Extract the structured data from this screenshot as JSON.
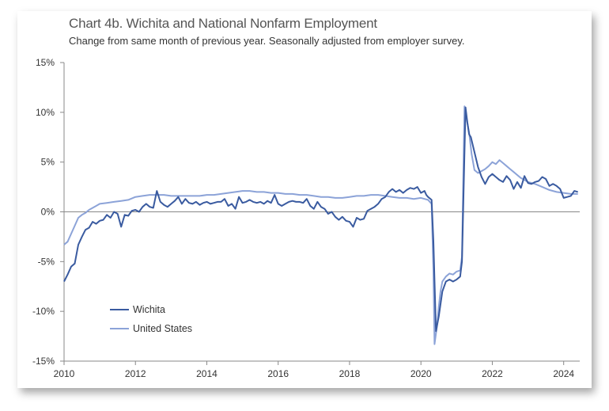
{
  "chart_data": {
    "type": "line",
    "title": "Chart 4b. Wichita and National Nonfarm Employment",
    "subtitle": "Change from same month of previous year. Seasonally adjusted from employer survey.",
    "xlabel": "",
    "ylabel": "",
    "xlim": [
      2010.0,
      2024.45
    ],
    "ylim": [
      -15,
      15
    ],
    "x_ticks": [
      2010,
      2012,
      2014,
      2016,
      2018,
      2020,
      2022,
      2024
    ],
    "x_tick_labels": [
      "2010",
      "2012",
      "2014",
      "2016",
      "2018",
      "2020",
      "2022",
      "2024"
    ],
    "y_ticks": [
      15,
      10,
      5,
      0,
      -5,
      -10,
      -15
    ],
    "y_tick_labels": [
      "15%",
      "10%",
      "5%",
      "0%",
      "-5%",
      "-10%",
      "-15%"
    ],
    "grid": false,
    "legend_position": "bottom-left",
    "series": [
      {
        "name": "Wichita",
        "color": "#3a5ba0",
        "points": [
          [
            2010.0,
            -7.0
          ],
          [
            2010.1,
            -6.3
          ],
          [
            2010.2,
            -5.5
          ],
          [
            2010.3,
            -5.2
          ],
          [
            2010.4,
            -3.3
          ],
          [
            2010.5,
            -2.5
          ],
          [
            2010.6,
            -1.8
          ],
          [
            2010.7,
            -1.6
          ],
          [
            2010.8,
            -1.0
          ],
          [
            2010.9,
            -1.2
          ],
          [
            2011.0,
            -0.9
          ],
          [
            2011.1,
            -0.8
          ],
          [
            2011.2,
            -0.3
          ],
          [
            2011.3,
            -0.6
          ],
          [
            2011.4,
            0.0
          ],
          [
            2011.5,
            -0.2
          ],
          [
            2011.6,
            -1.5
          ],
          [
            2011.7,
            -0.3
          ],
          [
            2011.8,
            -0.4
          ],
          [
            2011.9,
            0.1
          ],
          [
            2012.0,
            0.2
          ],
          [
            2012.1,
            0.0
          ],
          [
            2012.2,
            0.5
          ],
          [
            2012.3,
            0.8
          ],
          [
            2012.4,
            0.5
          ],
          [
            2012.5,
            0.4
          ],
          [
            2012.6,
            2.1
          ],
          [
            2012.7,
            1.0
          ],
          [
            2012.8,
            0.7
          ],
          [
            2012.9,
            0.5
          ],
          [
            2013.0,
            0.8
          ],
          [
            2013.1,
            1.1
          ],
          [
            2013.2,
            1.5
          ],
          [
            2013.3,
            0.8
          ],
          [
            2013.4,
            1.3
          ],
          [
            2013.5,
            0.9
          ],
          [
            2013.6,
            0.8
          ],
          [
            2013.7,
            1.0
          ],
          [
            2013.8,
            0.7
          ],
          [
            2013.9,
            0.9
          ],
          [
            2014.0,
            1.0
          ],
          [
            2014.1,
            0.8
          ],
          [
            2014.2,
            0.9
          ],
          [
            2014.3,
            1.0
          ],
          [
            2014.4,
            1.0
          ],
          [
            2014.5,
            1.3
          ],
          [
            2014.6,
            0.6
          ],
          [
            2014.7,
            0.8
          ],
          [
            2014.8,
            0.3
          ],
          [
            2014.9,
            1.5
          ],
          [
            2015.0,
            0.9
          ],
          [
            2015.1,
            1.0
          ],
          [
            2015.2,
            1.2
          ],
          [
            2015.3,
            1.0
          ],
          [
            2015.4,
            0.9
          ],
          [
            2015.5,
            1.0
          ],
          [
            2015.6,
            0.8
          ],
          [
            2015.7,
            1.1
          ],
          [
            2015.8,
            0.9
          ],
          [
            2015.9,
            1.7
          ],
          [
            2016.0,
            0.8
          ],
          [
            2016.1,
            0.6
          ],
          [
            2016.2,
            0.8
          ],
          [
            2016.3,
            1.0
          ],
          [
            2016.4,
            1.1
          ],
          [
            2016.5,
            1.0
          ],
          [
            2016.6,
            1.0
          ],
          [
            2016.7,
            0.9
          ],
          [
            2016.8,
            1.3
          ],
          [
            2016.9,
            0.6
          ],
          [
            2017.0,
            0.3
          ],
          [
            2017.1,
            1.0
          ],
          [
            2017.2,
            0.5
          ],
          [
            2017.3,
            0.3
          ],
          [
            2017.4,
            -0.2
          ],
          [
            2017.5,
            0.0
          ],
          [
            2017.6,
            -0.5
          ],
          [
            2017.7,
            -0.8
          ],
          [
            2017.8,
            -0.5
          ],
          [
            2017.9,
            -0.9
          ],
          [
            2018.0,
            -1.0
          ],
          [
            2018.1,
            -1.5
          ],
          [
            2018.2,
            -0.6
          ],
          [
            2018.3,
            -0.8
          ],
          [
            2018.4,
            -0.7
          ],
          [
            2018.5,
            0.1
          ],
          [
            2018.6,
            0.3
          ],
          [
            2018.7,
            0.5
          ],
          [
            2018.8,
            0.8
          ],
          [
            2018.9,
            1.3
          ],
          [
            2019.0,
            1.5
          ],
          [
            2019.1,
            2.0
          ],
          [
            2019.2,
            2.3
          ],
          [
            2019.3,
            2.0
          ],
          [
            2019.4,
            2.2
          ],
          [
            2019.5,
            1.9
          ],
          [
            2019.6,
            2.2
          ],
          [
            2019.7,
            2.4
          ],
          [
            2019.8,
            2.3
          ],
          [
            2019.9,
            2.5
          ],
          [
            2020.0,
            1.9
          ],
          [
            2020.1,
            2.1
          ],
          [
            2020.15,
            1.7
          ],
          [
            2020.2,
            1.5
          ],
          [
            2020.3,
            1.2
          ],
          [
            2020.35,
            -3.0
          ],
          [
            2020.42,
            -12.0
          ],
          [
            2020.5,
            -10.5
          ],
          [
            2020.6,
            -8.0
          ],
          [
            2020.7,
            -7.0
          ],
          [
            2020.8,
            -6.8
          ],
          [
            2020.9,
            -7.0
          ],
          [
            2021.0,
            -6.8
          ],
          [
            2021.1,
            -6.5
          ],
          [
            2021.15,
            -5.0
          ],
          [
            2021.25,
            10.5
          ],
          [
            2021.3,
            9.0
          ],
          [
            2021.35,
            7.8
          ],
          [
            2021.4,
            7.5
          ],
          [
            2021.5,
            6.0
          ],
          [
            2021.6,
            4.5
          ],
          [
            2021.7,
            3.5
          ],
          [
            2021.8,
            2.8
          ],
          [
            2021.9,
            3.5
          ],
          [
            2022.0,
            3.8
          ],
          [
            2022.1,
            3.5
          ],
          [
            2022.2,
            3.2
          ],
          [
            2022.3,
            3.0
          ],
          [
            2022.4,
            3.6
          ],
          [
            2022.5,
            3.2
          ],
          [
            2022.6,
            2.3
          ],
          [
            2022.7,
            3.0
          ],
          [
            2022.8,
            2.4
          ],
          [
            2022.9,
            3.6
          ],
          [
            2023.0,
            2.9
          ],
          [
            2023.1,
            2.8
          ],
          [
            2023.2,
            3.0
          ],
          [
            2023.3,
            3.1
          ],
          [
            2023.4,
            3.5
          ],
          [
            2023.5,
            3.3
          ],
          [
            2023.6,
            2.6
          ],
          [
            2023.7,
            2.8
          ],
          [
            2023.8,
            2.6
          ],
          [
            2023.9,
            2.3
          ],
          [
            2024.0,
            1.4
          ],
          [
            2024.1,
            1.5
          ],
          [
            2024.2,
            1.6
          ],
          [
            2024.3,
            2.1
          ],
          [
            2024.4,
            2.0
          ]
        ]
      },
      {
        "name": "United States",
        "color": "#8ca3d8",
        "points": [
          [
            2010.0,
            -3.3
          ],
          [
            2010.1,
            -3.0
          ],
          [
            2010.2,
            -2.2
          ],
          [
            2010.3,
            -1.4
          ],
          [
            2010.4,
            -0.6
          ],
          [
            2010.5,
            -0.3
          ],
          [
            2010.6,
            -0.1
          ],
          [
            2010.7,
            0.2
          ],
          [
            2010.8,
            0.4
          ],
          [
            2010.9,
            0.6
          ],
          [
            2011.0,
            0.8
          ],
          [
            2011.2,
            0.9
          ],
          [
            2011.4,
            1.0
          ],
          [
            2011.6,
            1.1
          ],
          [
            2011.8,
            1.2
          ],
          [
            2012.0,
            1.5
          ],
          [
            2012.2,
            1.6
          ],
          [
            2012.4,
            1.7
          ],
          [
            2012.6,
            1.7
          ],
          [
            2012.8,
            1.7
          ],
          [
            2013.0,
            1.6
          ],
          [
            2013.2,
            1.6
          ],
          [
            2013.4,
            1.6
          ],
          [
            2013.6,
            1.6
          ],
          [
            2013.8,
            1.6
          ],
          [
            2014.0,
            1.7
          ],
          [
            2014.2,
            1.7
          ],
          [
            2014.4,
            1.8
          ],
          [
            2014.6,
            1.9
          ],
          [
            2014.8,
            2.0
          ],
          [
            2015.0,
            2.1
          ],
          [
            2015.2,
            2.1
          ],
          [
            2015.4,
            2.0
          ],
          [
            2015.6,
            2.0
          ],
          [
            2015.8,
            1.9
          ],
          [
            2016.0,
            1.9
          ],
          [
            2016.2,
            1.8
          ],
          [
            2016.4,
            1.8
          ],
          [
            2016.6,
            1.7
          ],
          [
            2016.8,
            1.7
          ],
          [
            2017.0,
            1.6
          ],
          [
            2017.2,
            1.5
          ],
          [
            2017.4,
            1.5
          ],
          [
            2017.6,
            1.4
          ],
          [
            2017.8,
            1.4
          ],
          [
            2018.0,
            1.5
          ],
          [
            2018.2,
            1.6
          ],
          [
            2018.4,
            1.6
          ],
          [
            2018.6,
            1.7
          ],
          [
            2018.8,
            1.7
          ],
          [
            2019.0,
            1.6
          ],
          [
            2019.2,
            1.5
          ],
          [
            2019.4,
            1.4
          ],
          [
            2019.6,
            1.4
          ],
          [
            2019.8,
            1.3
          ],
          [
            2020.0,
            1.4
          ],
          [
            2020.1,
            1.3
          ],
          [
            2020.2,
            1.2
          ],
          [
            2020.3,
            0.8
          ],
          [
            2020.35,
            -6.0
          ],
          [
            2020.38,
            -13.3
          ],
          [
            2020.45,
            -11.5
          ],
          [
            2020.5,
            -9.5
          ],
          [
            2020.55,
            -8.0
          ],
          [
            2020.6,
            -7.0
          ],
          [
            2020.7,
            -6.5
          ],
          [
            2020.8,
            -6.2
          ],
          [
            2020.9,
            -6.3
          ],
          [
            2021.0,
            -6.0
          ],
          [
            2021.1,
            -5.9
          ],
          [
            2021.15,
            -4.5
          ],
          [
            2021.22,
            10.6
          ],
          [
            2021.28,
            9.3
          ],
          [
            2021.35,
            8.0
          ],
          [
            2021.42,
            5.8
          ],
          [
            2021.5,
            4.2
          ],
          [
            2021.6,
            3.9
          ],
          [
            2021.7,
            4.1
          ],
          [
            2021.8,
            4.3
          ],
          [
            2021.9,
            4.6
          ],
          [
            2022.0,
            5.0
          ],
          [
            2022.1,
            4.8
          ],
          [
            2022.2,
            5.2
          ],
          [
            2022.3,
            4.9
          ],
          [
            2022.4,
            4.6
          ],
          [
            2022.5,
            4.3
          ],
          [
            2022.6,
            4.0
          ],
          [
            2022.7,
            3.7
          ],
          [
            2022.8,
            3.4
          ],
          [
            2022.9,
            3.2
          ],
          [
            2023.0,
            3.0
          ],
          [
            2023.2,
            2.8
          ],
          [
            2023.4,
            2.5
          ],
          [
            2023.6,
            2.2
          ],
          [
            2023.8,
            2.0
          ],
          [
            2024.0,
            1.9
          ],
          [
            2024.2,
            1.8
          ],
          [
            2024.4,
            1.8
          ]
        ]
      }
    ]
  }
}
